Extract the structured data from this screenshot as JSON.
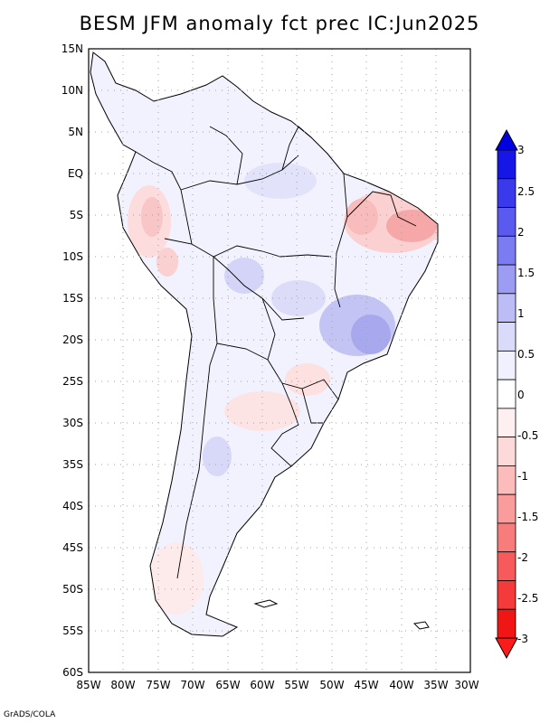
{
  "title": "BESM  JFM anomaly fct prec IC:Jun2025",
  "footer": "GrADS/COLA",
  "axes": {
    "lat_labels": [
      "15N",
      "10N",
      "5N",
      "EQ",
      "5S",
      "10S",
      "15S",
      "20S",
      "25S",
      "30S",
      "35S",
      "40S",
      "45S",
      "50S",
      "55S",
      "60S"
    ],
    "lon_labels": [
      "85W",
      "80W",
      "75W",
      "70W",
      "65W",
      "60W",
      "55W",
      "50W",
      "45W",
      "40W",
      "35W",
      "30W"
    ]
  },
  "colorbar": {
    "labels": [
      "3",
      "2.5",
      "2",
      "1.5",
      "1",
      "0.5",
      "0",
      "-0.5",
      "-1",
      "-1.5",
      "-2",
      "-2.5",
      "-3"
    ],
    "colors": [
      "#1616e6",
      "#3a3aec",
      "#5a5af0",
      "#7c7cf2",
      "#9c9cf4",
      "#bcbcf6",
      "#dadafa",
      "#f0f0fe",
      "#ffffff",
      "#fef0f0",
      "#fddada",
      "#fcbcbc",
      "#fa9c9c",
      "#f87c7c",
      "#f65a5a",
      "#f43a3a",
      "#f01616"
    ],
    "top_arrow_color": "#0000e0",
    "bottom_arrow_color": "#ff1a1a"
  }
}
